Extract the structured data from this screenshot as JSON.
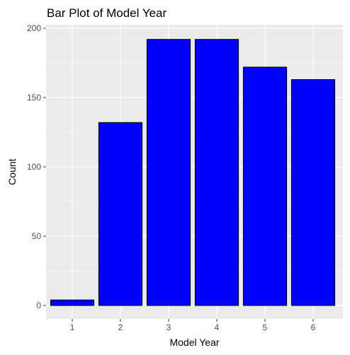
{
  "chart_data": {
    "type": "bar",
    "title": "Bar Plot of Model Year",
    "xlabel": "Model Year",
    "ylabel": "Count",
    "categories": [
      "1",
      "2",
      "3",
      "4",
      "5",
      "6"
    ],
    "values": [
      4,
      132,
      192,
      192,
      172,
      163
    ],
    "ylim": [
      0,
      200
    ],
    "yticks": [
      "0",
      "50",
      "100",
      "150",
      "200"
    ],
    "ytick_values": [
      0,
      50,
      100,
      150,
      200
    ],
    "grid": true,
    "legend": "none",
    "bar_fill": "#0000ff",
    "bar_outline": "#000000",
    "panel_background": "#ebebeb",
    "grid_color": "#ffffff"
  }
}
